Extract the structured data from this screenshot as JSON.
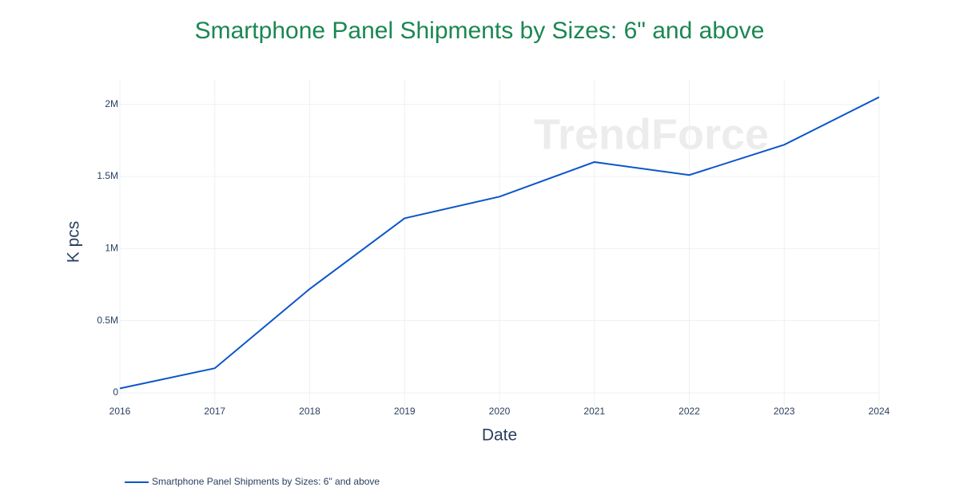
{
  "chart_data": {
    "type": "line",
    "title": "Smartphone Panel Shipments by Sizes: 6\" and above",
    "xlabel": "Date",
    "ylabel": "K pcs",
    "watermark": "TrendForce",
    "x": [
      2016,
      2017,
      2018,
      2019,
      2020,
      2021,
      2022,
      2023,
      2024
    ],
    "series": [
      {
        "name": "Smartphone Panel Shipments by Sizes: 6\" and above",
        "color": "#0b56c9",
        "values": [
          30000,
          170000,
          720000,
          1210000,
          1360000,
          1600000,
          1510000,
          1720000,
          2050000
        ]
      }
    ],
    "xlim": [
      2016,
      2024
    ],
    "xticks": [
      2016,
      2017,
      2018,
      2019,
      2020,
      2021,
      2022,
      2023,
      2024
    ],
    "ylim": [
      -100000,
      2170000
    ],
    "yticks": [
      0,
      {
        "value": 500000,
        "label": "0.5M"
      },
      {
        "value": 1000000,
        "label": "1M"
      },
      {
        "value": 1500000,
        "label": "1.5M"
      },
      {
        "value": 2000000,
        "label": "2M"
      }
    ],
    "grid": true,
    "legend": "bottom-left"
  }
}
